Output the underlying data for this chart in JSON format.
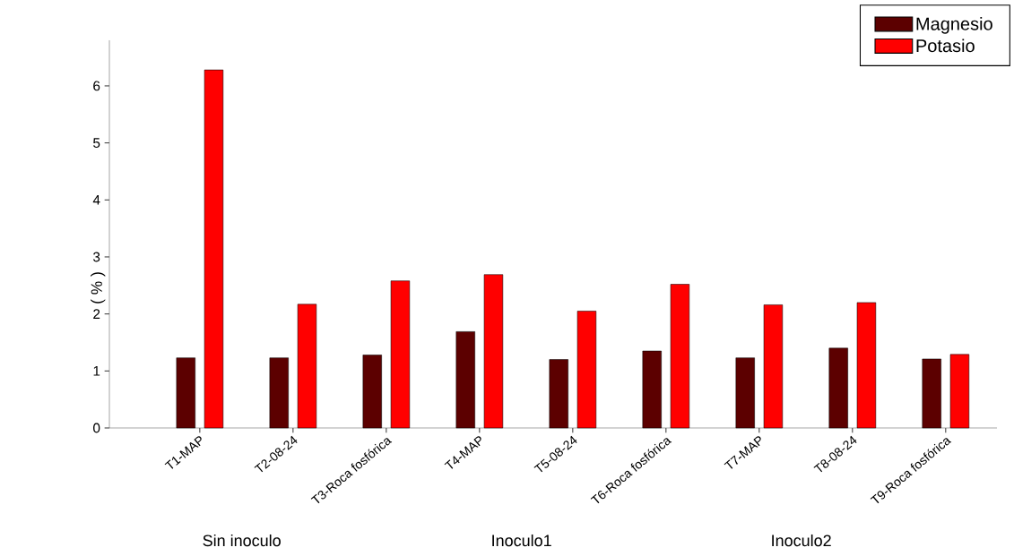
{
  "chart_data": {
    "type": "bar",
    "ylabel": "( % )",
    "categories": [
      "T1-MAP",
      "T2-08-24",
      "T3-Roca fosfórica",
      "T4-MAP",
      "T5-08-24",
      "T6-Roca fosfórica",
      "T7-MAP",
      "T8-08-24",
      "T9-Roca fosfórica"
    ],
    "series": [
      {
        "name": "Magnesio",
        "color": "#5c0000",
        "values": [
          1.23,
          1.23,
          1.28,
          1.69,
          1.2,
          1.35,
          1.23,
          1.4,
          1.21
        ]
      },
      {
        "name": "Potasio",
        "color": "#ff0000",
        "values": [
          6.28,
          2.17,
          2.58,
          2.69,
          2.05,
          2.52,
          2.16,
          2.2,
          1.29
        ]
      }
    ],
    "ylim": [
      0,
      6.8
    ],
    "yticks": [
      0,
      1,
      2,
      3,
      4,
      5,
      6
    ],
    "legend": "top right",
    "annotations": [
      "Sin inoculo",
      "Inoculo1",
      "Inoculo2"
    ]
  }
}
